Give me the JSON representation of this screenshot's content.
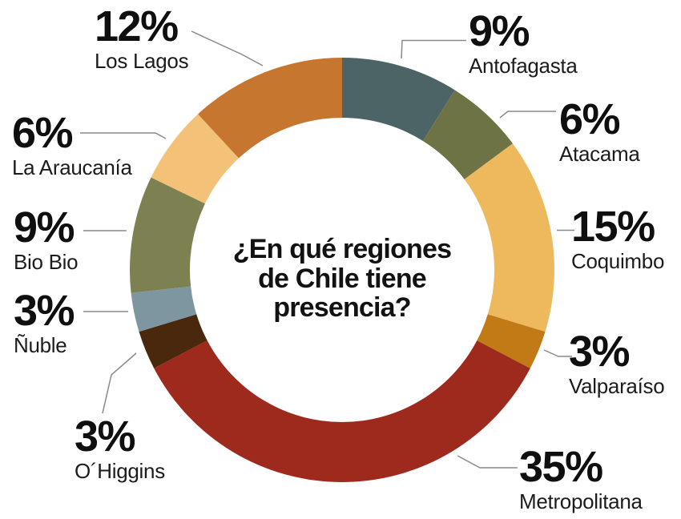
{
  "title": {
    "line1": "¿En qué regiones",
    "line2": "de Chile tiene",
    "line3": "presencia?"
  },
  "chart_data": {
    "type": "pie",
    "variant": "donut",
    "title": "¿En qué regiones de Chile tiene presencia?",
    "unit": "%",
    "start_position": "top",
    "direction": "clockwise",
    "labels_position": "around-outside-with-leader-lines",
    "segments": [
      {
        "id": "antofagasta",
        "label": "Antofagasta",
        "value": 9,
        "pct_label": "9%",
        "color": "#4d6467"
      },
      {
        "id": "atacama",
        "label": "Atacama",
        "value": 6,
        "pct_label": "6%",
        "color": "#6d7345"
      },
      {
        "id": "coquimbo",
        "label": "Coquimbo",
        "value": 15,
        "pct_label": "15%",
        "color": "#eeb95c"
      },
      {
        "id": "valparaiso",
        "label": "Valparaíso",
        "value": 3,
        "pct_label": "3%",
        "color": "#c17a16"
      },
      {
        "id": "metropolitana",
        "label": "Metropolitana",
        "value": 35,
        "pct_label": "35%",
        "color": "#9e291d"
      },
      {
        "id": "ohiggins",
        "label": "O´Higgins",
        "value": 3,
        "pct_label": "3%",
        "color": "#4a280d"
      },
      {
        "id": "nuble",
        "label": "Ñuble",
        "value": 3,
        "pct_label": "3%",
        "color": "#7d96a0"
      },
      {
        "id": "biobio",
        "label": "Bio Bio",
        "value": 9,
        "pct_label": "9%",
        "color": "#7d8050"
      },
      {
        "id": "araucania",
        "label": "La Araucanía",
        "value": 6,
        "pct_label": "6%",
        "color": "#f3c278"
      },
      {
        "id": "loslagos",
        "label": "Los Lagos",
        "value": 12,
        "pct_label": "12%",
        "color": "#c7762f"
      }
    ],
    "colors": {
      "background": "#ffffff",
      "text": "#0f0f0f",
      "leader_line": "#8a8a8a"
    }
  }
}
